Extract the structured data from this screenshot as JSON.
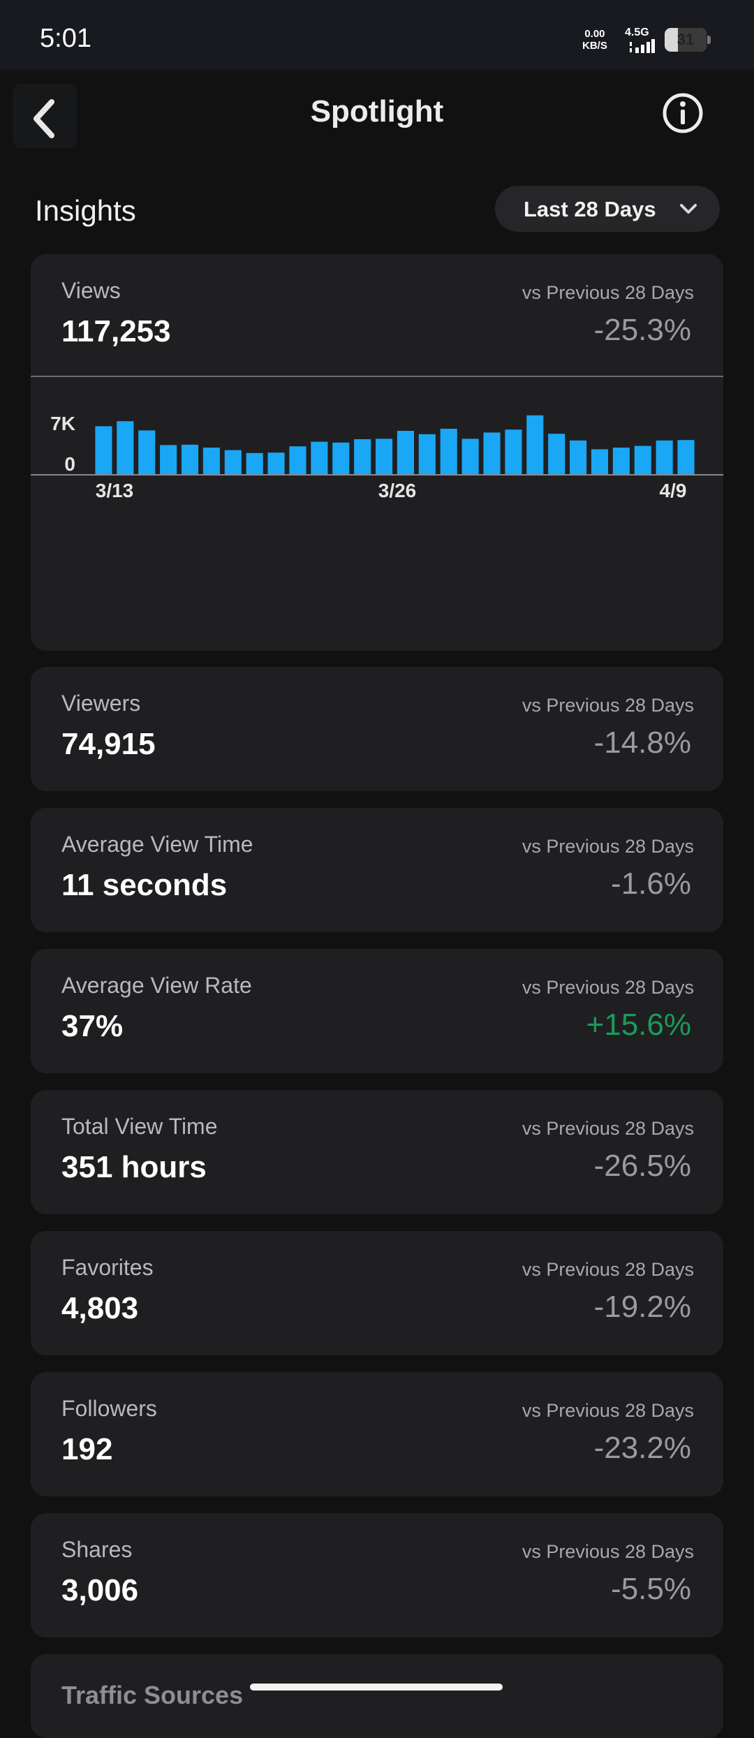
{
  "status_bar": {
    "time": "5:01",
    "net_speed_value": "0.00",
    "net_speed_unit": "KB/S",
    "network_type": "4.5G",
    "battery_level": "31"
  },
  "header": {
    "title": "Spotlight",
    "back_icon": "chevron-left-icon",
    "info_icon": "info-circle-icon"
  },
  "insights": {
    "title": "Insights",
    "range_label": "Last 28 Days"
  },
  "views_card": {
    "label": "Views",
    "value": "117,253",
    "compare_label": "vs Previous 28 Days",
    "compare_value": "-25.3%"
  },
  "chart_data": {
    "type": "bar",
    "color": "#1aa7f5",
    "y_tick_labels": [
      "7K",
      "0"
    ],
    "x_tick_labels": [
      "3/13",
      "3/26",
      "4/9"
    ],
    "ylim": [
      0,
      7000
    ],
    "values": [
      5800,
      6400,
      5300,
      3550,
      3600,
      3250,
      2950,
      2600,
      2650,
      3400,
      3950,
      3850,
      4250,
      4300,
      5250,
      4850,
      5500,
      4300,
      5050,
      5400,
      7100,
      4900,
      4100,
      3050,
      3250,
      3450,
      4100,
      4150
    ]
  },
  "metrics": [
    {
      "label": "Viewers",
      "value": "74,915",
      "compare_label": "vs Previous 28 Days",
      "compare_value": "-14.8%"
    },
    {
      "label": "Average View Time",
      "value": "11 seconds",
      "compare_label": "vs Previous 28 Days",
      "compare_value": "-1.6%"
    },
    {
      "label": "Average View Rate",
      "value": "37%",
      "compare_label": "vs Previous 28 Days",
      "compare_value": "+15.6%"
    },
    {
      "label": "Total View Time",
      "value": "351 hours",
      "compare_label": "vs Previous 28 Days",
      "compare_value": "-26.5%"
    },
    {
      "label": "Favorites",
      "value": "4,803",
      "compare_label": "vs Previous 28 Days",
      "compare_value": "-19.2%"
    },
    {
      "label": "Followers",
      "value": "192",
      "compare_label": "vs Previous 28 Days",
      "compare_value": "-23.2%"
    },
    {
      "label": "Shares",
      "value": "3,006",
      "compare_label": "vs Previous 28 Days",
      "compare_value": "-5.5%"
    }
  ],
  "traffic_sources": {
    "title": "Traffic Sources"
  },
  "colors": {
    "background": "#111112",
    "card": "#1f1f21",
    "bar": "#1aa7f5",
    "negative_change": "#9a9aa0",
    "positive_change": "#189c5c"
  }
}
